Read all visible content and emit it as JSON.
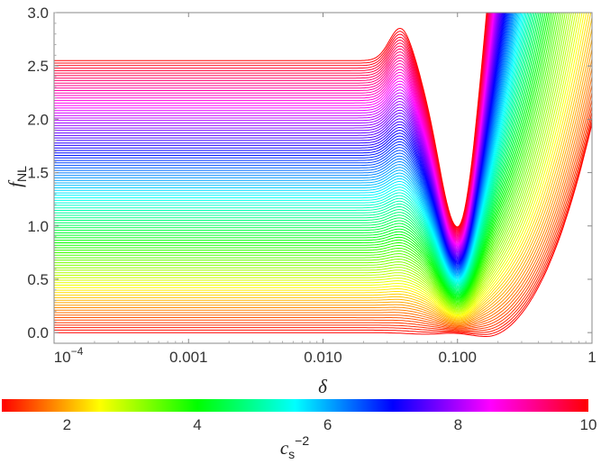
{
  "chart_data": {
    "type": "line",
    "xlabel": "δ",
    "ylabel": {
      "main": "f",
      "sub": "NL"
    },
    "xscale": "log",
    "xlim": [
      0.0001,
      1
    ],
    "ylim": [
      -0.1,
      3.0
    ],
    "xticks": [
      {
        "value": 0.0001,
        "base": "10",
        "exp": "−4"
      },
      {
        "value": 0.001,
        "label": "0.001"
      },
      {
        "value": 0.01,
        "label": "0.010"
      },
      {
        "value": 0.1,
        "label": "0.100"
      },
      {
        "value": 1,
        "label": "1"
      }
    ],
    "yticks": [
      {
        "value": 0.0,
        "label": "0.0"
      },
      {
        "value": 0.5,
        "label": "0.5"
      },
      {
        "value": 1.0,
        "label": "1.0"
      },
      {
        "value": 1.5,
        "label": "1.5"
      },
      {
        "value": 2.0,
        "label": "2.0"
      },
      {
        "value": 2.5,
        "label": "2.5"
      },
      {
        "value": 3.0,
        "label": "3.0"
      }
    ],
    "curve_family": {
      "parameter": "cs^-2",
      "range": [
        1,
        10
      ],
      "count": 110,
      "plateau_fnl": {
        "at_cs2_1": 0.0,
        "at_cs2_10": 2.55
      },
      "sample_curves": [
        {
          "cs2": 1,
          "x": [
            0.0001,
            0.01,
            0.03,
            0.1,
            0.2,
            0.5,
            1.0
          ],
          "y": [
            0.0,
            0.0,
            0.0,
            -0.07,
            -0.07,
            0.0,
            0.1
          ]
        },
        {
          "cs2": 5.5,
          "x": [
            0.0001,
            0.01,
            0.04,
            0.1,
            0.2,
            0.3
          ],
          "y": [
            1.28,
            1.28,
            1.35,
            0.45,
            2.0,
            3.0
          ]
        },
        {
          "cs2": 10,
          "x": [
            0.0001,
            0.01,
            0.025,
            0.04,
            0.1,
            0.15
          ],
          "y": [
            2.55,
            2.55,
            2.58,
            2.72,
            1.08,
            3.0
          ]
        }
      ]
    },
    "colorbar": {
      "title": {
        "main": "c",
        "sub": "s",
        "sup": "−2"
      },
      "range": [
        1,
        10
      ],
      "ticks": [
        {
          "value": 2,
          "label": "2"
        },
        {
          "value": 4,
          "label": "4"
        },
        {
          "value": 6,
          "label": "6"
        },
        {
          "value": 8,
          "label": "8"
        },
        {
          "value": 10,
          "label": "10"
        }
      ],
      "colors": [
        "#ff0000",
        "#ffff00",
        "#00ff00",
        "#00ffff",
        "#0000ff",
        "#ff00ff",
        "#ff0000"
      ]
    },
    "grid": false,
    "legend": "none"
  }
}
